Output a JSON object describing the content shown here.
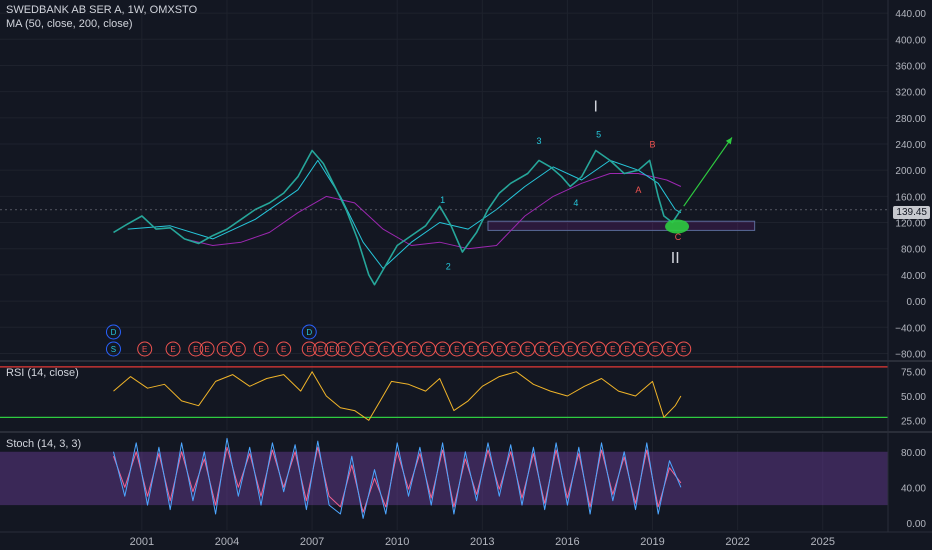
{
  "header": {
    "title": "SWEDBANK AB SER A, 1W, OMXSTO",
    "ma_label": "MA (50, close, 200, close)"
  },
  "price_badge": "139.45",
  "colors": {
    "background": "#131722",
    "price_line": "#26a69a",
    "ma50": "#26c6da",
    "ma200": "#9c27b0",
    "rsi_line": "#f0b429",
    "rsi_upper": "#e53935",
    "rsi_lower": "#2ecc40",
    "stoch_k": "#4da6ff",
    "stoch_d": "#f06292",
    "stoch_band": "#6a3d9a",
    "wave_label": "#26c6da",
    "corrective_label": "#ef5350",
    "arrow": "#2ecc40"
  },
  "chart_data": [
    {
      "type": "line",
      "name": "price-pane",
      "symbol": "SWEDBANK AB SER A",
      "interval": "1W",
      "exchange": "OMXSTO",
      "ylim": [
        -90,
        460
      ],
      "y_ticks": [
        "440.00",
        "400.00",
        "360.00",
        "320.00",
        "280.00",
        "240.00",
        "200.00",
        "160.00",
        "120.00",
        "80.00",
        "40.00",
        "0.00",
        "−40.00",
        "−80.00"
      ],
      "y_tick_values": [
        440,
        400,
        360,
        320,
        280,
        240,
        200,
        160,
        120,
        80,
        40,
        0,
        -40,
        -80
      ],
      "x_ticks": [
        "2001",
        "2004",
        "2007",
        "2010",
        "2013",
        "2016",
        "2019",
        "2022",
        "2025"
      ],
      "x_tick_values": [
        2001,
        2004,
        2007,
        2010,
        2013,
        2016,
        2019,
        2022,
        2025
      ],
      "xlim": [
        1996.0,
        2027.3
      ],
      "series": [
        {
          "name": "price",
          "x": [
            2000.0,
            2000.5,
            2001.0,
            2001.5,
            2002.0,
            2002.5,
            2003.0,
            2003.5,
            2004.0,
            2004.5,
            2005.0,
            2005.5,
            2006.0,
            2006.5,
            2007.0,
            2007.4,
            2007.8,
            2008.2,
            2008.6,
            2009.0,
            2009.2,
            2009.6,
            2010.0,
            2010.5,
            2011.0,
            2011.5,
            2011.9,
            2012.3,
            2012.8,
            2013.2,
            2013.6,
            2014.0,
            2014.6,
            2015.0,
            2015.4,
            2015.8,
            2016.1,
            2016.5,
            2017.0,
            2017.5,
            2018.0,
            2018.5,
            2018.9,
            2019.2,
            2019.4,
            2019.7,
            2020.0
          ],
          "y": [
            105,
            118,
            130,
            110,
            112,
            95,
            88,
            100,
            110,
            125,
            140,
            150,
            165,
            190,
            230,
            210,
            175,
            140,
            95,
            40,
            25,
            55,
            85,
            100,
            115,
            145,
            115,
            75,
            105,
            140,
            165,
            180,
            195,
            215,
            205,
            190,
            175,
            190,
            230,
            215,
            195,
            200,
            215,
            160,
            130,
            120,
            139.45
          ]
        },
        {
          "name": "MA 50",
          "x": [
            2000.5,
            2002.0,
            2003.5,
            2005.0,
            2006.5,
            2007.2,
            2008.0,
            2008.8,
            2009.5,
            2010.5,
            2011.5,
            2012.5,
            2013.5,
            2014.5,
            2015.5,
            2016.5,
            2017.5,
            2018.5,
            2019.2,
            2019.8,
            2020.0
          ],
          "y": [
            110,
            115,
            95,
            125,
            170,
            215,
            160,
            90,
            50,
            90,
            120,
            110,
            140,
            175,
            205,
            185,
            215,
            200,
            180,
            140,
            135
          ]
        },
        {
          "name": "MA 200",
          "x": [
            2002.5,
            2003.5,
            2004.5,
            2005.5,
            2006.5,
            2007.5,
            2008.5,
            2009.5,
            2010.5,
            2011.5,
            2012.5,
            2013.5,
            2014.5,
            2015.5,
            2016.5,
            2017.5,
            2018.5,
            2019.5,
            2020.0
          ],
          "y": [
            95,
            85,
            90,
            105,
            135,
            160,
            150,
            110,
            85,
            90,
            80,
            85,
            130,
            160,
            180,
            195,
            195,
            185,
            175
          ]
        }
      ],
      "support_zone": {
        "y_low": 108,
        "y_high": 122,
        "x_start": 2013.2,
        "x_end": 2022.6
      },
      "wave_labels": [
        {
          "text": "1",
          "x": 2011.6,
          "y": 150,
          "kind": "impulse"
        },
        {
          "text": "2",
          "x": 2011.8,
          "y": 48,
          "kind": "impulse"
        },
        {
          "text": "3",
          "x": 2015.0,
          "y": 240,
          "kind": "impulse"
        },
        {
          "text": "4",
          "x": 2016.3,
          "y": 145,
          "kind": "impulse"
        },
        {
          "text": "5",
          "x": 2017.1,
          "y": 250,
          "kind": "impulse"
        },
        {
          "text": "A",
          "x": 2018.5,
          "y": 165,
          "kind": "corrective"
        },
        {
          "text": "B",
          "x": 2019.0,
          "y": 235,
          "kind": "corrective"
        },
        {
          "text": "C",
          "x": 2019.9,
          "y": 93,
          "kind": "corrective"
        }
      ],
      "degree_labels": [
        {
          "text": "I",
          "x": 2017.0,
          "y": 290
        },
        {
          "text": "II",
          "x": 2019.8,
          "y": 58
        }
      ],
      "projection_arrow": {
        "x1": 2020.1,
        "y1": 145,
        "x2": 2021.8,
        "y2": 250
      },
      "events_row1": [
        {
          "text": "D",
          "x": 2000.0
        },
        {
          "text": "D",
          "x": 2006.9
        }
      ],
      "events_row2": [
        {
          "text": "S",
          "x": 2000.0
        },
        {
          "text": "E",
          "x": 2001.1
        },
        {
          "text": "E",
          "x": 2002.1
        },
        {
          "text": "E",
          "x": 2002.9
        },
        {
          "text": "E",
          "x": 2003.3
        },
        {
          "text": "E",
          "x": 2003.9
        },
        {
          "text": "E",
          "x": 2004.4
        },
        {
          "text": "E",
          "x": 2005.2
        },
        {
          "text": "E",
          "x": 2006.0
        },
        {
          "text": "E",
          "x": 2006.9
        },
        {
          "text": "E",
          "x": 2007.3
        },
        {
          "text": "E",
          "x": 2007.7
        },
        {
          "text": "E",
          "x": 2008.1
        },
        {
          "text": "E",
          "x": 2008.6
        },
        {
          "text": "E",
          "x": 2009.1
        },
        {
          "text": "E",
          "x": 2009.6
        },
        {
          "text": "E",
          "x": 2010.1
        },
        {
          "text": "E",
          "x": 2010.6
        },
        {
          "text": "E",
          "x": 2011.1
        },
        {
          "text": "E",
          "x": 2011.6
        },
        {
          "text": "E",
          "x": 2012.1
        },
        {
          "text": "E",
          "x": 2012.6
        },
        {
          "text": "E",
          "x": 2013.1
        },
        {
          "text": "E",
          "x": 2013.6
        },
        {
          "text": "E",
          "x": 2014.1
        },
        {
          "text": "E",
          "x": 2014.6
        },
        {
          "text": "E",
          "x": 2015.1
        },
        {
          "text": "E",
          "x": 2015.6
        },
        {
          "text": "E",
          "x": 2016.1
        },
        {
          "text": "E",
          "x": 2016.6
        },
        {
          "text": "E",
          "x": 2017.1
        },
        {
          "text": "E",
          "x": 2017.6
        },
        {
          "text": "E",
          "x": 2018.1
        },
        {
          "text": "E",
          "x": 2018.6
        },
        {
          "text": "E",
          "x": 2019.1
        },
        {
          "text": "E",
          "x": 2019.6
        },
        {
          "text": "E",
          "x": 2020.1
        }
      ]
    },
    {
      "type": "line",
      "name": "rsi-pane",
      "title": "RSI (14, close)",
      "ylim": [
        15,
        85
      ],
      "y_ticks": [
        "75.00",
        "50.00",
        "25.00"
      ],
      "y_tick_values": [
        75,
        50,
        25
      ],
      "levels": [
        {
          "value": 80,
          "color": "rsi_upper"
        },
        {
          "value": 28,
          "color": "rsi_lower"
        }
      ],
      "series": [
        {
          "name": "RSI",
          "x": [
            2000.0,
            2000.6,
            2001.2,
            2001.8,
            2002.4,
            2003.0,
            2003.6,
            2004.2,
            2004.8,
            2005.4,
            2006.0,
            2006.6,
            2007.0,
            2007.5,
            2008.0,
            2008.5,
            2009.0,
            2009.4,
            2009.8,
            2010.4,
            2011.0,
            2011.5,
            2012.0,
            2012.5,
            2013.0,
            2013.6,
            2014.2,
            2014.8,
            2015.4,
            2016.0,
            2016.6,
            2017.2,
            2017.8,
            2018.4,
            2019.0,
            2019.4,
            2019.8,
            2020.0
          ],
          "y": [
            55,
            70,
            58,
            62,
            45,
            40,
            65,
            72,
            60,
            68,
            72,
            55,
            75,
            50,
            38,
            35,
            25,
            45,
            65,
            62,
            55,
            68,
            35,
            45,
            60,
            70,
            75,
            62,
            55,
            50,
            60,
            68,
            55,
            50,
            65,
            28,
            40,
            50
          ]
        }
      ]
    },
    {
      "type": "line",
      "name": "stoch-pane",
      "title": "Stoch (14, 3, 3)",
      "ylim": [
        -8,
        100
      ],
      "y_ticks": [
        "80.00",
        "40.00",
        "0.00"
      ],
      "y_tick_values": [
        80,
        40,
        0
      ],
      "band": [
        20,
        80
      ],
      "series": [
        {
          "name": "%K",
          "x": [
            2000.0,
            2000.4,
            2000.8,
            2001.2,
            2001.6,
            2002.0,
            2002.4,
            2002.8,
            2003.2,
            2003.6,
            2004.0,
            2004.4,
            2004.8,
            2005.2,
            2005.6,
            2006.0,
            2006.4,
            2006.8,
            2007.2,
            2007.6,
            2008.0,
            2008.4,
            2008.8,
            2009.2,
            2009.6,
            2010.0,
            2010.4,
            2010.8,
            2011.2,
            2011.6,
            2012.0,
            2012.4,
            2012.8,
            2013.2,
            2013.6,
            2014.0,
            2014.4,
            2014.8,
            2015.2,
            2015.6,
            2016.0,
            2016.4,
            2016.8,
            2017.2,
            2017.6,
            2018.0,
            2018.4,
            2018.8,
            2019.2,
            2019.6,
            2020.0
          ],
          "y": [
            80,
            30,
            90,
            20,
            85,
            15,
            90,
            25,
            80,
            10,
            95,
            30,
            85,
            20,
            90,
            35,
            88,
            15,
            92,
            20,
            10,
            75,
            5,
            60,
            10,
            90,
            30,
            85,
            20,
            90,
            10,
            80,
            25,
            90,
            30,
            88,
            20,
            85,
            15,
            90,
            20,
            85,
            10,
            90,
            25,
            80,
            15,
            90,
            10,
            70,
            40
          ]
        },
        {
          "name": "%D",
          "x": [
            2000.0,
            2000.4,
            2000.8,
            2001.2,
            2001.6,
            2002.0,
            2002.4,
            2002.8,
            2003.2,
            2003.6,
            2004.0,
            2004.4,
            2004.8,
            2005.2,
            2005.6,
            2006.0,
            2006.4,
            2006.8,
            2007.2,
            2007.6,
            2008.0,
            2008.4,
            2008.8,
            2009.2,
            2009.6,
            2010.0,
            2010.4,
            2010.8,
            2011.2,
            2011.6,
            2012.0,
            2012.4,
            2012.8,
            2013.2,
            2013.6,
            2014.0,
            2014.4,
            2014.8,
            2015.2,
            2015.6,
            2016.0,
            2016.4,
            2016.8,
            2017.2,
            2017.6,
            2018.0,
            2018.4,
            2018.8,
            2019.2,
            2019.6,
            2020.0
          ],
          "y": [
            75,
            40,
            80,
            30,
            78,
            25,
            80,
            35,
            72,
            20,
            85,
            40,
            78,
            30,
            82,
            40,
            80,
            25,
            85,
            30,
            18,
            65,
            12,
            50,
            18,
            80,
            38,
            78,
            28,
            82,
            18,
            72,
            32,
            82,
            38,
            80,
            28,
            78,
            22,
            82,
            28,
            78,
            18,
            82,
            32,
            74,
            22,
            82,
            18,
            62,
            45
          ]
        }
      ]
    }
  ]
}
